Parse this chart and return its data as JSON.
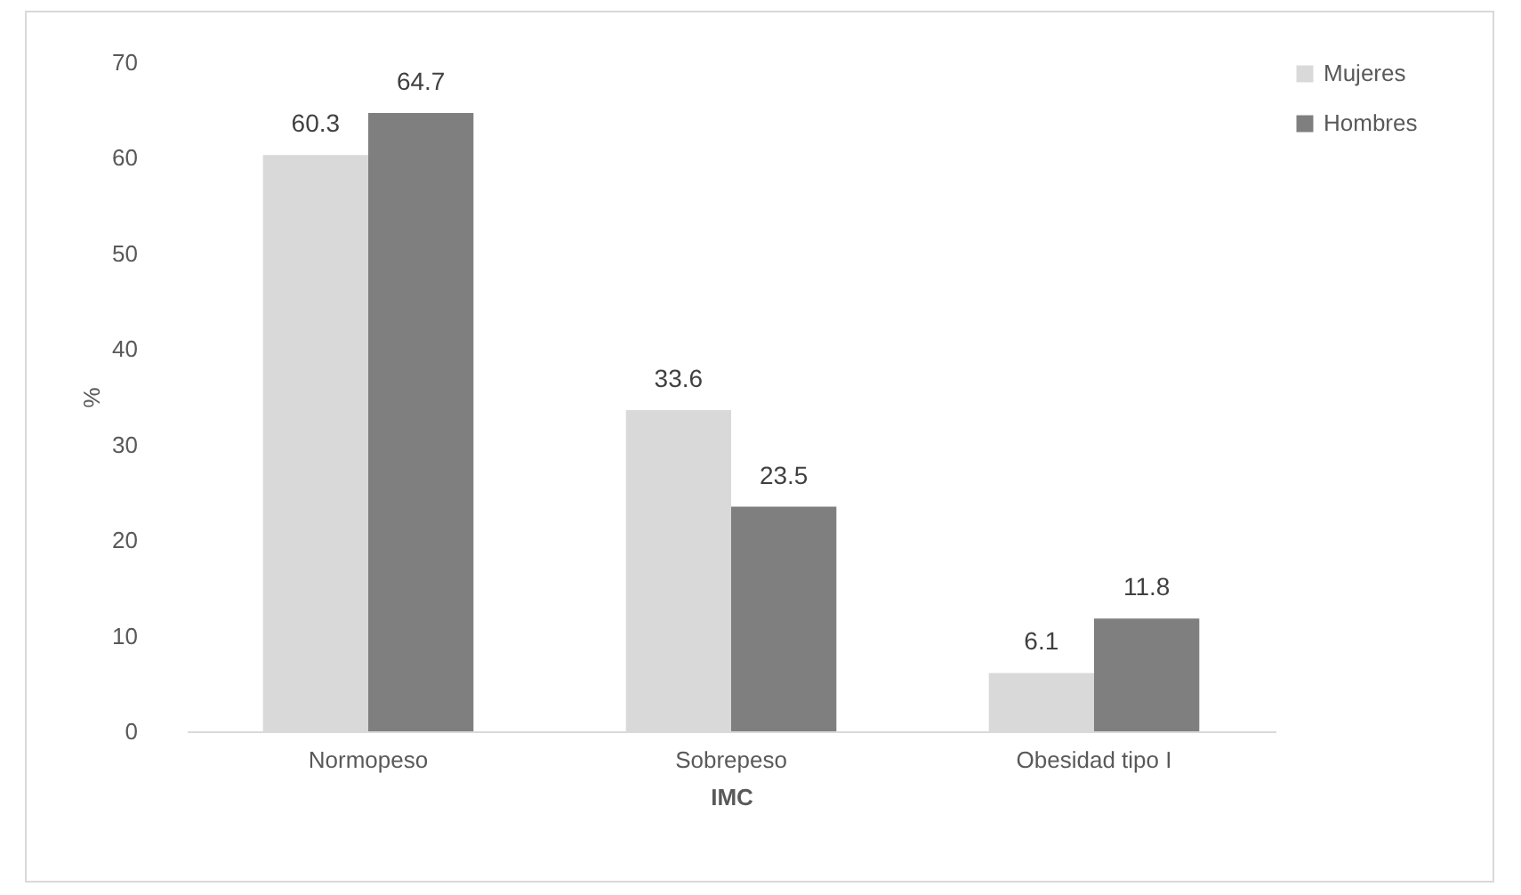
{
  "chart_data": {
    "type": "bar",
    "xlabel": "IMC",
    "ylabel": "%",
    "categories": [
      "Normopeso",
      "Sobrepeso",
      "Obesidad tipo I"
    ],
    "series": [
      {
        "name": "Mujeres",
        "color": "#d9d9d9",
        "values": [
          60.3,
          33.6,
          6.1
        ]
      },
      {
        "name": "Hombres",
        "color": "#7f7f7f",
        "values": [
          64.7,
          23.5,
          11.8
        ]
      }
    ],
    "ylim": [
      0,
      70
    ],
    "yticks": [
      0,
      10,
      20,
      30,
      40,
      50,
      60,
      70
    ],
    "grid": false,
    "legend": "right",
    "data_labels": true
  }
}
